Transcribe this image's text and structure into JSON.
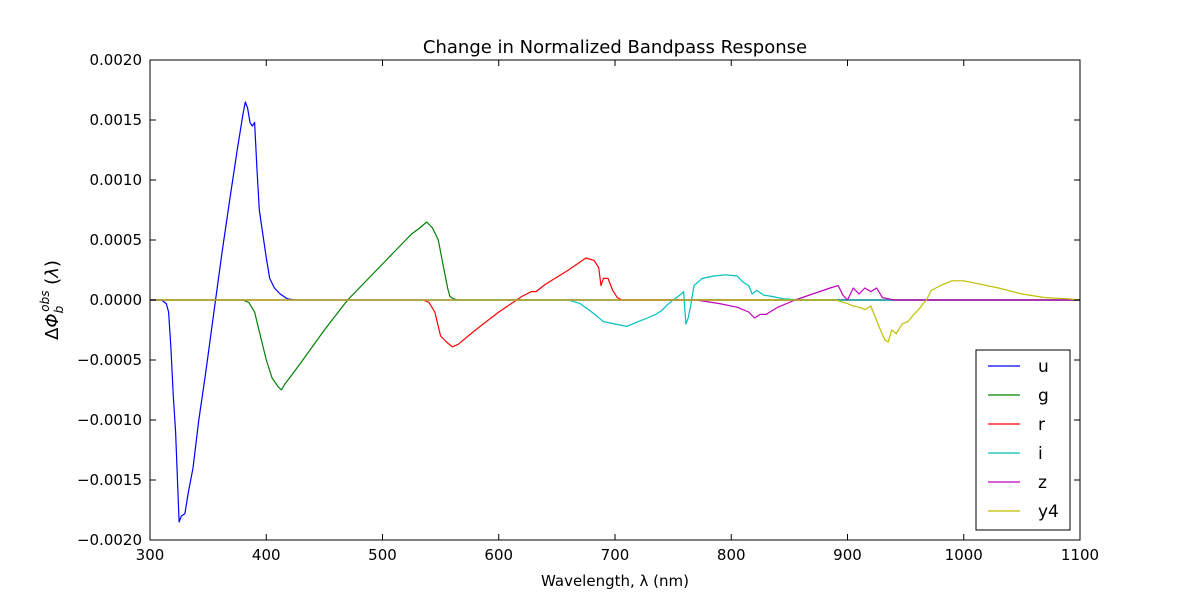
{
  "chart_data": {
    "type": "line",
    "title": "Change in Normalized Bandpass Response",
    "xlabel": "Wavelength, λ (nm)",
    "ylabel": "ΔΦ_b^obs (λ)",
    "xlim": [
      300,
      1100
    ],
    "ylim": [
      -0.002,
      0.002
    ],
    "x_ticks": [
      300,
      400,
      500,
      600,
      700,
      800,
      900,
      1000,
      1100
    ],
    "x_tick_labels": [
      "300",
      "400",
      "500",
      "600",
      "700",
      "800",
      "900",
      "1000",
      "1100"
    ],
    "y_ticks": [
      0.002,
      0.0015,
      0.001,
      0.0005,
      0.0,
      -0.0005,
      -0.001,
      -0.0015,
      -0.002
    ],
    "y_tick_labels": [
      "0.0020",
      "0.0015",
      "0.0010",
      "0.0005",
      "0.0000",
      "−0.0005",
      "−0.0010",
      "−0.0015",
      "−0.0020"
    ],
    "grid": false,
    "legend_position": "bottom-right",
    "series": [
      {
        "name": "u",
        "color": "#0000ff",
        "x": [
          300,
          310,
          314,
          316,
          318,
          320,
          322,
          325,
          327,
          330,
          333,
          337,
          342,
          348,
          355,
          362,
          368,
          375,
          380,
          382,
          384,
          386,
          388,
          390,
          392,
          394,
          397,
          400,
          403,
          407,
          412,
          418,
          425,
          1100
        ],
        "y": [
          0,
          0,
          -3e-05,
          -0.0001,
          -0.0004,
          -0.0008,
          -0.0011,
          -0.00185,
          -0.0018,
          -0.00178,
          -0.0016,
          -0.0014,
          -0.001,
          -0.0006,
          -0.0001,
          0.0004,
          0.0008,
          0.00125,
          0.00155,
          0.00165,
          0.0016,
          0.00148,
          0.00145,
          0.00148,
          0.0011,
          0.00075,
          0.00055,
          0.00035,
          0.00018,
          0.0001,
          5e-05,
          1e-05,
          0,
          0
        ]
      },
      {
        "name": "g",
        "color": "#008000",
        "x": [
          300,
          380,
          385,
          390,
          395,
          400,
          405,
          410,
          413,
          416,
          420,
          430,
          450,
          470,
          490,
          510,
          525,
          532,
          538,
          543,
          548,
          552,
          556,
          558,
          561,
          565,
          580,
          1100
        ],
        "y": [
          0,
          0,
          -2e-05,
          -0.0001,
          -0.0003,
          -0.0005,
          -0.00065,
          -0.00072,
          -0.00075,
          -0.0007,
          -0.00065,
          -0.00052,
          -0.00025,
          0.0,
          0.0002,
          0.0004,
          0.00055,
          0.0006,
          0.00065,
          0.0006,
          0.0005,
          0.0003,
          0.0001,
          3e-05,
          1e-05,
          0,
          0,
          0
        ]
      },
      {
        "name": "r",
        "color": "#ff0000",
        "x": [
          300,
          535,
          540,
          545,
          550,
          555,
          560,
          565,
          570,
          580,
          600,
          620,
          628,
          632,
          640,
          660,
          675,
          682,
          686,
          688,
          690,
          694,
          698,
          702,
          706,
          720,
          1100
        ],
        "y": [
          0,
          0,
          -2e-05,
          -0.0001,
          -0.0003,
          -0.00035,
          -0.00039,
          -0.00037,
          -0.00033,
          -0.00025,
          -0.0001,
          3e-05,
          7e-05,
          7e-05,
          0.00013,
          0.00025,
          0.00035,
          0.00033,
          0.00027,
          0.00012,
          0.00018,
          0.00018,
          8e-05,
          2e-05,
          0,
          0,
          0
        ]
      },
      {
        "name": "i",
        "color": "#00bfbf",
        "x": [
          300,
          660,
          670,
          680,
          690,
          700,
          710,
          720,
          728,
          735,
          740,
          745,
          750,
          757,
          759,
          761,
          763,
          765,
          768,
          775,
          785,
          795,
          805,
          810,
          815,
          818,
          822,
          828,
          835,
          845,
          860,
          1100
        ],
        "y": [
          0,
          0,
          -3e-05,
          -0.0001,
          -0.00018,
          -0.0002,
          -0.00022,
          -0.00018,
          -0.00015,
          -0.00012,
          -9e-05,
          -4e-05,
          0.0,
          5e-05,
          7e-05,
          -0.0002,
          -0.00015,
          -5e-05,
          0.00012,
          0.00018,
          0.0002,
          0.00021,
          0.0002,
          0.00015,
          0.00012,
          5e-05,
          8e-05,
          4e-05,
          3e-05,
          1e-05,
          0,
          0
        ]
      },
      {
        "name": "z",
        "color": "#bf00bf",
        "x": [
          300,
          770,
          790,
          805,
          815,
          820,
          825,
          830,
          840,
          855,
          870,
          885,
          892,
          896,
          900,
          905,
          910,
          915,
          920,
          925,
          930,
          940,
          1100
        ],
        "y": [
          0,
          0,
          -3e-05,
          -6e-05,
          -0.0001,
          -0.00015,
          -0.00012,
          -0.00012,
          -6e-05,
          0.0,
          5e-05,
          0.0001,
          0.00012,
          4e-05,
          0.0,
          0.0001,
          5e-05,
          0.0001,
          7e-05,
          0.0001,
          2e-05,
          0,
          0
        ]
      },
      {
        "name": "y4",
        "color": "#bfbf00",
        "x": [
          300,
          890,
          900,
          905,
          910,
          915,
          920,
          923,
          927,
          932,
          935,
          938,
          942,
          947,
          952,
          957,
          962,
          965,
          968,
          972,
          976,
          980,
          985,
          990,
          1000,
          1010,
          1030,
          1050,
          1070,
          1090,
          1100
        ],
        "y": [
          0,
          0,
          -3e-05,
          -5e-05,
          -6e-05,
          -8e-05,
          -5e-05,
          -0.00012,
          -0.00022,
          -0.00033,
          -0.00035,
          -0.00025,
          -0.00028,
          -0.0002,
          -0.00018,
          -0.00012,
          -7e-05,
          -3e-05,
          0.0,
          8e-05,
          0.0001,
          0.00012,
          0.00014,
          0.00016,
          0.00016,
          0.00014,
          0.0001,
          5e-05,
          2e-05,
          1e-05,
          0
        ]
      }
    ]
  }
}
